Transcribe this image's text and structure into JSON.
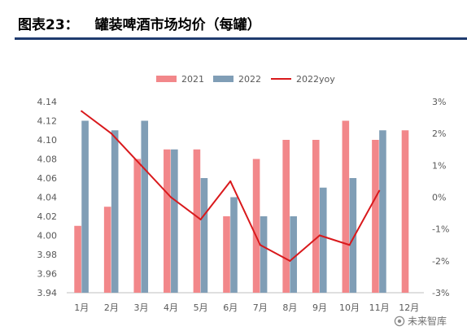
{
  "figure_label": "图表23：",
  "colors": {
    "title_rule": "#1F3B6E",
    "axis": "#BFBFBF",
    "tick_text": "#595959"
  },
  "chart_data": {
    "type": "bar",
    "title": "罐装啤酒市场均价（每罐）",
    "xlabel": "",
    "ylabel": "",
    "categories": [
      "1月",
      "2月",
      "3月",
      "4月",
      "5月",
      "6月",
      "7月",
      "8月",
      "9月",
      "10月",
      "11月",
      "12月"
    ],
    "series": [
      {
        "name": "2021",
        "type": "bar",
        "axis": "left",
        "color": "#F2878A",
        "values": [
          4.01,
          4.03,
          4.08,
          4.09,
          4.09,
          4.02,
          4.08,
          4.1,
          4.1,
          4.12,
          4.1,
          4.11
        ]
      },
      {
        "name": "2022",
        "type": "bar",
        "axis": "left",
        "color": "#809EB6",
        "values": [
          4.12,
          4.11,
          4.12,
          4.09,
          4.06,
          4.04,
          4.02,
          4.02,
          4.05,
          4.06,
          4.11,
          null
        ]
      },
      {
        "name": "2022yoy",
        "type": "line",
        "axis": "right",
        "color": "#D9191C",
        "values": [
          2.7,
          2.0,
          1.0,
          0.0,
          -0.7,
          0.5,
          -1.5,
          -2.0,
          -1.2,
          -1.5,
          0.2,
          null
        ]
      }
    ],
    "y_left": {
      "min": 3.94,
      "max": 4.14,
      "ticks": [
        "4.14",
        "4.12",
        "4.10",
        "4.08",
        "4.06",
        "4.04",
        "4.02",
        "4.00",
        "3.98",
        "3.96",
        "3.94"
      ]
    },
    "y_right": {
      "min": -3,
      "max": 3,
      "ticks": [
        "3%",
        "2%",
        "1%",
        "0%",
        "-1%",
        "-2%",
        "-3%"
      ]
    },
    "legend_position": "top",
    "grid": false
  },
  "watermark": {
    "text": "未来智库",
    "logo": "circle-logo-icon"
  }
}
